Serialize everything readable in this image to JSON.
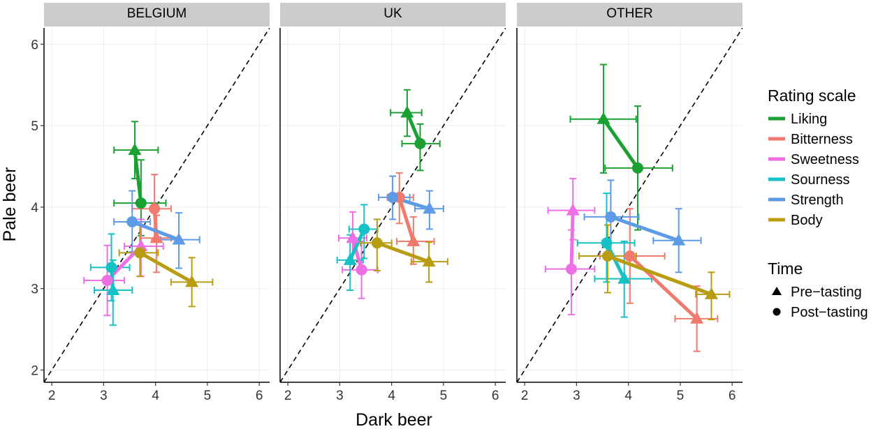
{
  "chart_data": {
    "type": "scatter",
    "xlabel": "Dark beer",
    "ylabel": "Pale beer",
    "xlim": [
      1.85,
      6.2
    ],
    "ylim": [
      1.85,
      6.2
    ],
    "x_ticks": [
      2,
      3,
      4,
      5,
      6
    ],
    "y_ticks": [
      2,
      3,
      4,
      5,
      6
    ],
    "x_tick_labels": [
      "2",
      "3",
      "4",
      "5",
      "6"
    ],
    "y_tick_labels": [
      "2",
      "3",
      "4",
      "5",
      "6"
    ],
    "reference_line": "y = x (dashed)",
    "grid": true,
    "panels": [
      {
        "id": "belgium",
        "label": "BELGIUM"
      },
      {
        "id": "uk",
        "label": "UK"
      },
      {
        "id": "other",
        "label": "OTHER"
      }
    ],
    "color_legend": {
      "title": "Rating scale",
      "items": [
        {
          "name": "Liking",
          "color": "#1aa033"
        },
        {
          "name": "Bitterness",
          "color": "#f07a6e"
        },
        {
          "name": "Sweetness",
          "color": "#ee6fe3"
        },
        {
          "name": "Sourness",
          "color": "#14c1c4"
        },
        {
          "name": "Strength",
          "color": "#5e9be7"
        },
        {
          "name": "Body",
          "color": "#b89d12"
        }
      ]
    },
    "shape_legend": {
      "title": "Time",
      "items": [
        {
          "name": "Pre−tasting",
          "shape": "triangle"
        },
        {
          "name": "Post−tasting",
          "shape": "circle"
        }
      ]
    },
    "series": [
      {
        "panel": "belgium",
        "scale": "Liking",
        "pre": {
          "x": 3.6,
          "y": 4.7,
          "x_err": [
            3.2,
            4.05
          ],
          "y_err": [
            4.35,
            5.05
          ]
        },
        "post": {
          "x": 3.72,
          "y": 4.05,
          "x_err": [
            3.2,
            4.2
          ],
          "y_err": [
            3.65,
            4.58
          ]
        }
      },
      {
        "panel": "belgium",
        "scale": "Bitterness",
        "pre": {
          "x": 4.02,
          "y": 3.62,
          "x_err": [
            3.7,
            4.3
          ],
          "y_err": [
            3.2,
            3.9
          ]
        },
        "post": {
          "x": 3.98,
          "y": 3.98,
          "x_err": [
            3.55,
            4.3
          ],
          "y_err": [
            3.6,
            4.4
          ]
        }
      },
      {
        "panel": "belgium",
        "scale": "Sweetness",
        "pre": {
          "x": 3.72,
          "y": 3.52,
          "x_err": [
            3.4,
            4.15
          ],
          "y_err": [
            3.15,
            3.85
          ]
        },
        "post": {
          "x": 3.07,
          "y": 3.1,
          "x_err": [
            2.62,
            3.4
          ],
          "y_err": [
            2.67,
            3.53
          ]
        }
      },
      {
        "panel": "belgium",
        "scale": "Sourness",
        "pre": {
          "x": 3.18,
          "y": 2.98,
          "x_err": [
            2.82,
            3.55
          ],
          "y_err": [
            2.55,
            3.35
          ]
        },
        "post": {
          "x": 3.15,
          "y": 3.26,
          "x_err": [
            2.75,
            3.5
          ],
          "y_err": [
            2.85,
            3.67
          ]
        }
      },
      {
        "panel": "belgium",
        "scale": "Strength",
        "pre": {
          "x": 4.45,
          "y": 3.6,
          "x_err": [
            4.1,
            4.85
          ],
          "y_err": [
            3.25,
            3.93
          ]
        },
        "post": {
          "x": 3.55,
          "y": 3.82,
          "x_err": [
            3.2,
            3.9
          ],
          "y_err": [
            3.45,
            4.2
          ]
        }
      },
      {
        "panel": "belgium",
        "scale": "Body",
        "pre": {
          "x": 4.7,
          "y": 3.08,
          "x_err": [
            4.3,
            5.1
          ],
          "y_err": [
            2.78,
            3.38
          ]
        },
        "post": {
          "x": 3.7,
          "y": 3.44,
          "x_err": [
            3.3,
            4.05
          ],
          "y_err": [
            3.15,
            3.78
          ]
        }
      },
      {
        "panel": "uk",
        "scale": "Liking",
        "pre": {
          "x": 4.3,
          "y": 5.16,
          "x_err": [
            3.98,
            4.58
          ],
          "y_err": [
            4.87,
            5.44
          ]
        },
        "post": {
          "x": 4.55,
          "y": 4.78,
          "x_err": [
            4.2,
            4.93
          ],
          "y_err": [
            4.45,
            5.02
          ]
        }
      },
      {
        "panel": "uk",
        "scale": "Bitterness",
        "pre": {
          "x": 4.42,
          "y": 3.58,
          "x_err": [
            4.1,
            4.82
          ],
          "y_err": [
            3.3,
            3.88
          ]
        },
        "post": {
          "x": 4.15,
          "y": 4.12,
          "x_err": [
            3.92,
            4.42
          ],
          "y_err": [
            3.8,
            4.42
          ]
        }
      },
      {
        "panel": "uk",
        "scale": "Sweetness",
        "pre": {
          "x": 3.25,
          "y": 3.62,
          "x_err": [
            2.98,
            3.52
          ],
          "y_err": [
            3.3,
            3.94
          ]
        },
        "post": {
          "x": 3.42,
          "y": 3.23,
          "x_err": [
            3.05,
            3.73
          ],
          "y_err": [
            2.88,
            3.58
          ]
        }
      },
      {
        "panel": "uk",
        "scale": "Sourness",
        "pre": {
          "x": 3.2,
          "y": 3.35,
          "x_err": [
            2.95,
            3.45
          ],
          "y_err": [
            2.98,
            3.66
          ]
        },
        "post": {
          "x": 3.47,
          "y": 3.73,
          "x_err": [
            3.18,
            3.73
          ],
          "y_err": [
            3.37,
            4.03
          ]
        }
      },
      {
        "panel": "uk",
        "scale": "Strength",
        "pre": {
          "x": 4.73,
          "y": 3.98,
          "x_err": [
            4.45,
            5.0
          ],
          "y_err": [
            3.73,
            4.2
          ]
        },
        "post": {
          "x": 4.02,
          "y": 4.12,
          "x_err": [
            3.75,
            4.35
          ],
          "y_err": [
            3.85,
            4.38
          ]
        }
      },
      {
        "panel": "uk",
        "scale": "Body",
        "pre": {
          "x": 4.72,
          "y": 3.33,
          "x_err": [
            4.38,
            5.08
          ],
          "y_err": [
            3.08,
            3.57
          ]
        },
        "post": {
          "x": 3.72,
          "y": 3.56,
          "x_err": [
            3.4,
            4.0
          ],
          "y_err": [
            3.22,
            3.85
          ]
        }
      },
      {
        "panel": "other",
        "scale": "Liking",
        "pre": {
          "x": 3.52,
          "y": 5.08,
          "x_err": [
            2.88,
            4.15
          ],
          "y_err": [
            4.42,
            5.75
          ]
        },
        "post": {
          "x": 4.18,
          "y": 4.48,
          "x_err": [
            3.55,
            4.85
          ],
          "y_err": [
            3.72,
            5.24
          ]
        }
      },
      {
        "panel": "other",
        "scale": "Bitterness",
        "pre": {
          "x": 5.32,
          "y": 2.63,
          "x_err": [
            4.9,
            5.72
          ],
          "y_err": [
            2.23,
            3.03
          ]
        },
        "post": {
          "x": 4.03,
          "y": 3.4,
          "x_err": [
            3.45,
            4.7
          ],
          "y_err": [
            2.82,
            3.98
          ]
        }
      },
      {
        "panel": "other",
        "scale": "Sweetness",
        "pre": {
          "x": 2.93,
          "y": 3.96,
          "x_err": [
            2.45,
            3.35
          ],
          "y_err": [
            3.6,
            4.35
          ]
        },
        "post": {
          "x": 2.9,
          "y": 3.24,
          "x_err": [
            2.4,
            3.35
          ],
          "y_err": [
            2.68,
            3.72
          ]
        }
      },
      {
        "panel": "other",
        "scale": "Sourness",
        "pre": {
          "x": 3.92,
          "y": 3.12,
          "x_err": [
            3.35,
            4.45
          ],
          "y_err": [
            2.65,
            3.58
          ]
        },
        "post": {
          "x": 3.58,
          "y": 3.56,
          "x_err": [
            3.02,
            4.12
          ],
          "y_err": [
            3.08,
            4.17
          ]
        }
      },
      {
        "panel": "other",
        "scale": "Strength",
        "pre": {
          "x": 4.97,
          "y": 3.59,
          "x_err": [
            4.48,
            5.4
          ],
          "y_err": [
            3.2,
            3.98
          ]
        },
        "post": {
          "x": 3.66,
          "y": 3.88,
          "x_err": [
            3.15,
            4.2
          ],
          "y_err": [
            3.43,
            4.33
          ]
        }
      },
      {
        "panel": "other",
        "scale": "Body",
        "pre": {
          "x": 5.6,
          "y": 2.93,
          "x_err": [
            5.3,
            5.95
          ],
          "y_err": [
            2.62,
            3.2
          ]
        },
        "post": {
          "x": 3.6,
          "y": 3.4,
          "x_err": [
            3.05,
            4.15
          ],
          "y_err": [
            2.95,
            3.78
          ]
        }
      }
    ]
  }
}
